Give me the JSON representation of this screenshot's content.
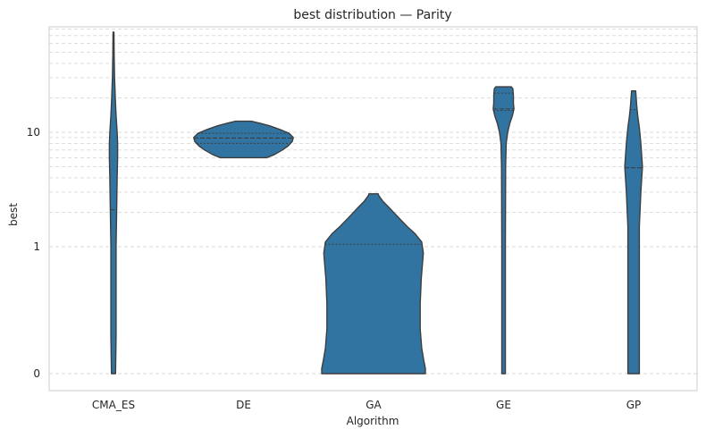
{
  "chart_data": {
    "type": "violin",
    "title": "best distribution — Parity",
    "xlabel": "Algorithm",
    "ylabel": "best",
    "yscale": "symlog",
    "yticks": [
      {
        "value": 0,
        "label": "0"
      },
      {
        "value": 1,
        "label": "1"
      },
      {
        "value": 10,
        "label": "10"
      }
    ],
    "categories": [
      "CMA_ES",
      "DE",
      "GA",
      "GE",
      "GP"
    ],
    "grid": true,
    "color": "#3274a1",
    "series": [
      {
        "category": "CMA_ES",
        "min": 0,
        "max": 75,
        "quartiles": [
          0,
          2.1,
          0
        ],
        "profile": [
          [
            0,
            0.04
          ],
          [
            0.3,
            0.05
          ],
          [
            1,
            0.05
          ],
          [
            2,
            0.06
          ],
          [
            4,
            0.07
          ],
          [
            6,
            0.08
          ],
          [
            8,
            0.08
          ],
          [
            10,
            0.07
          ],
          [
            14,
            0.05
          ],
          [
            20,
            0.035
          ],
          [
            30,
            0.02
          ],
          [
            50,
            0.012
          ],
          [
            75,
            0.008
          ]
        ]
      },
      {
        "category": "DE",
        "min": 6.0,
        "max": 12.5,
        "quartiles": [
          8.0,
          8.9,
          9.8
        ],
        "profile": [
          [
            6.0,
            0.45
          ],
          [
            6.4,
            0.6
          ],
          [
            7.0,
            0.75
          ],
          [
            7.6,
            0.86
          ],
          [
            8.3,
            0.94
          ],
          [
            9.0,
            0.96
          ],
          [
            9.8,
            0.88
          ],
          [
            10.6,
            0.7
          ],
          [
            11.4,
            0.5
          ],
          [
            12.0,
            0.32
          ],
          [
            12.5,
            0.15
          ]
        ]
      },
      {
        "category": "GA",
        "min": 0,
        "max": 2.9,
        "quartiles": [
          0,
          0,
          1.05
        ],
        "profile": [
          [
            0,
            1.0
          ],
          [
            0.04,
            1.0
          ],
          [
            0.1,
            0.97
          ],
          [
            0.2,
            0.93
          ],
          [
            0.35,
            0.9
          ],
          [
            0.55,
            0.9
          ],
          [
            0.75,
            0.92
          ],
          [
            0.95,
            0.96
          ],
          [
            1.1,
            0.93
          ],
          [
            1.3,
            0.8
          ],
          [
            1.5,
            0.65
          ],
          [
            1.8,
            0.48
          ],
          [
            2.2,
            0.3
          ],
          [
            2.5,
            0.18
          ],
          [
            2.8,
            0.1
          ],
          [
            2.9,
            0.09
          ]
        ]
      },
      {
        "category": "GE",
        "min": 0,
        "max": 25,
        "quartiles": [
          15.5,
          16.0,
          22.0
        ],
        "profile": [
          [
            0,
            0.035
          ],
          [
            1,
            0.035
          ],
          [
            5,
            0.04
          ],
          [
            8,
            0.05
          ],
          [
            10,
            0.08
          ],
          [
            12,
            0.12
          ],
          [
            14,
            0.17
          ],
          [
            16,
            0.2
          ],
          [
            18,
            0.19
          ],
          [
            21,
            0.19
          ],
          [
            24,
            0.18
          ],
          [
            25,
            0.15
          ]
        ]
      },
      {
        "category": "GP",
        "min": 0,
        "max": 23,
        "quartiles": [
          0,
          4.9,
          15.8
        ],
        "profile": [
          [
            0,
            0.11
          ],
          [
            0.6,
            0.11
          ],
          [
            1.5,
            0.11
          ],
          [
            3,
            0.14
          ],
          [
            5,
            0.17
          ],
          [
            8,
            0.14
          ],
          [
            11,
            0.11
          ],
          [
            14,
            0.08
          ],
          [
            17,
            0.06
          ],
          [
            20,
            0.05
          ],
          [
            23,
            0.04
          ]
        ]
      }
    ]
  }
}
